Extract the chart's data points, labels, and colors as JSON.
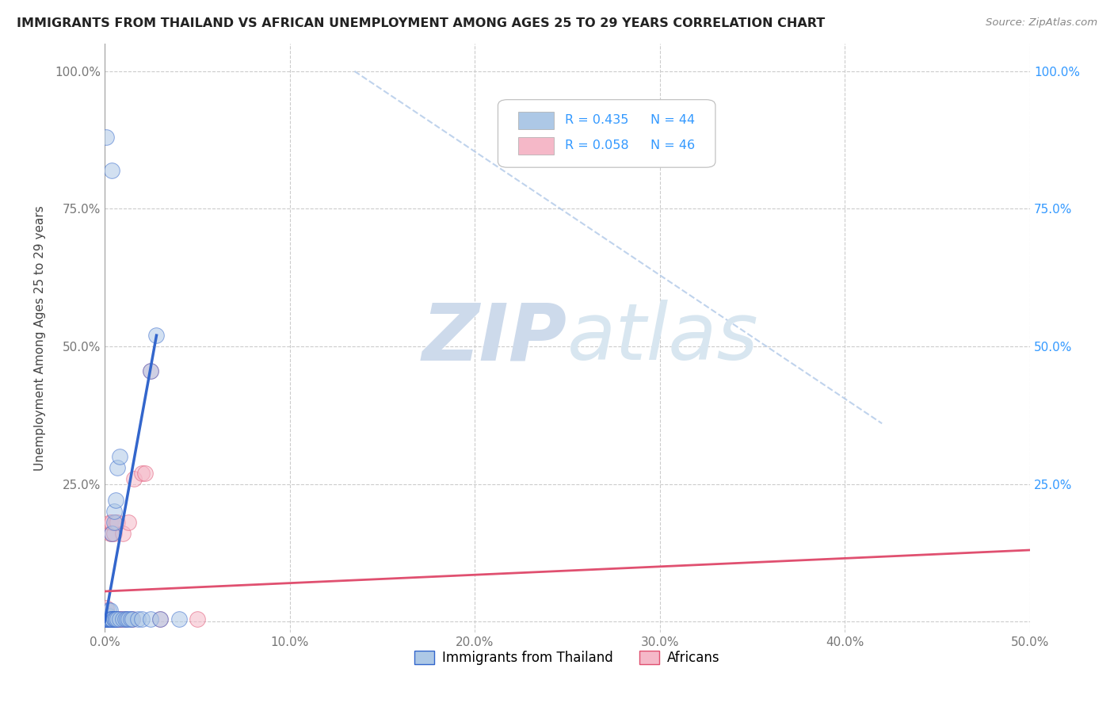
{
  "title": "IMMIGRANTS FROM THAILAND VS AFRICAN UNEMPLOYMENT AMONG AGES 25 TO 29 YEARS CORRELATION CHART",
  "source": "Source: ZipAtlas.com",
  "ylabel": "Unemployment Among Ages 25 to 29 years",
  "xlim": [
    0.0,
    0.5
  ],
  "ylim": [
    -0.02,
    1.05
  ],
  "xtick_vals": [
    0.0,
    0.1,
    0.2,
    0.3,
    0.4,
    0.5
  ],
  "xtick_labels": [
    "0.0%",
    "10.0%",
    "20.0%",
    "30.0%",
    "40.0%",
    "50.0%"
  ],
  "ytick_vals": [
    0.0,
    0.25,
    0.5,
    0.75,
    1.0
  ],
  "ytick_labels": [
    "",
    "25.0%",
    "50.0%",
    "75.0%",
    "100.0%"
  ],
  "right_ytick_labels": [
    "",
    "25.0%",
    "50.0%",
    "75.0%",
    "100.0%"
  ],
  "r_thailand": 0.435,
  "n_thailand": 44,
  "r_africans": 0.058,
  "n_africans": 46,
  "color_thailand": "#adc8e6",
  "color_africans": "#f5b8c8",
  "line_color_thailand": "#3366cc",
  "line_color_africans": "#e05070",
  "diagonal_color": "#b0c8e8",
  "watermark_color": "#cddaeb",
  "thailand_scatter": [
    [
      0.001,
      0.88
    ],
    [
      0.004,
      0.82
    ],
    [
      0.001,
      0.005
    ],
    [
      0.001,
      0.005
    ],
    [
      0.001,
      0.005
    ],
    [
      0.001,
      0.005
    ],
    [
      0.001,
      0.005
    ],
    [
      0.002,
      0.005
    ],
    [
      0.002,
      0.005
    ],
    [
      0.002,
      0.005
    ],
    [
      0.002,
      0.01
    ],
    [
      0.002,
      0.02
    ],
    [
      0.003,
      0.005
    ],
    [
      0.003,
      0.005
    ],
    [
      0.003,
      0.005
    ],
    [
      0.003,
      0.02
    ],
    [
      0.004,
      0.005
    ],
    [
      0.004,
      0.005
    ],
    [
      0.004,
      0.005
    ],
    [
      0.004,
      0.16
    ],
    [
      0.005,
      0.005
    ],
    [
      0.005,
      0.005
    ],
    [
      0.005,
      0.18
    ],
    [
      0.005,
      0.2
    ],
    [
      0.006,
      0.005
    ],
    [
      0.006,
      0.005
    ],
    [
      0.006,
      0.22
    ],
    [
      0.007,
      0.005
    ],
    [
      0.007,
      0.28
    ],
    [
      0.008,
      0.005
    ],
    [
      0.008,
      0.3
    ],
    [
      0.01,
      0.005
    ],
    [
      0.011,
      0.005
    ],
    [
      0.012,
      0.005
    ],
    [
      0.013,
      0.005
    ],
    [
      0.014,
      0.005
    ],
    [
      0.015,
      0.005
    ],
    [
      0.018,
      0.005
    ],
    [
      0.02,
      0.005
    ],
    [
      0.025,
      0.005
    ],
    [
      0.03,
      0.005
    ],
    [
      0.04,
      0.005
    ],
    [
      0.025,
      0.455
    ],
    [
      0.028,
      0.52
    ]
  ],
  "africans_scatter": [
    [
      0.001,
      0.005
    ],
    [
      0.001,
      0.005
    ],
    [
      0.001,
      0.005
    ],
    [
      0.001,
      0.005
    ],
    [
      0.001,
      0.005
    ],
    [
      0.001,
      0.005
    ],
    [
      0.001,
      0.005
    ],
    [
      0.001,
      0.005
    ],
    [
      0.001,
      0.01
    ],
    [
      0.001,
      0.015
    ],
    [
      0.001,
      0.02
    ],
    [
      0.001,
      0.025
    ],
    [
      0.002,
      0.005
    ],
    [
      0.002,
      0.005
    ],
    [
      0.002,
      0.005
    ],
    [
      0.002,
      0.005
    ],
    [
      0.002,
      0.005
    ],
    [
      0.002,
      0.005
    ],
    [
      0.002,
      0.005
    ],
    [
      0.002,
      0.005
    ],
    [
      0.003,
      0.005
    ],
    [
      0.003,
      0.005
    ],
    [
      0.003,
      0.16
    ],
    [
      0.003,
      0.18
    ],
    [
      0.004,
      0.005
    ],
    [
      0.004,
      0.005
    ],
    [
      0.004,
      0.16
    ],
    [
      0.004,
      0.18
    ],
    [
      0.005,
      0.005
    ],
    [
      0.005,
      0.16
    ],
    [
      0.006,
      0.005
    ],
    [
      0.006,
      0.18
    ],
    [
      0.007,
      0.005
    ],
    [
      0.007,
      0.18
    ],
    [
      0.008,
      0.005
    ],
    [
      0.009,
      0.005
    ],
    [
      0.01,
      0.16
    ],
    [
      0.011,
      0.005
    ],
    [
      0.013,
      0.18
    ],
    [
      0.015,
      0.005
    ],
    [
      0.016,
      0.26
    ],
    [
      0.02,
      0.27
    ],
    [
      0.022,
      0.27
    ],
    [
      0.025,
      0.455
    ],
    [
      0.03,
      0.005
    ],
    [
      0.05,
      0.005
    ]
  ],
  "thailand_line_x": [
    0.0,
    0.028
  ],
  "thailand_line_y": [
    0.0,
    0.52
  ],
  "africans_line_x": [
    0.0,
    0.5
  ],
  "africans_line_y": [
    0.055,
    0.13
  ],
  "diagonal_line_x": [
    0.135,
    0.42
  ],
  "diagonal_line_y": [
    1.0,
    0.36
  ]
}
